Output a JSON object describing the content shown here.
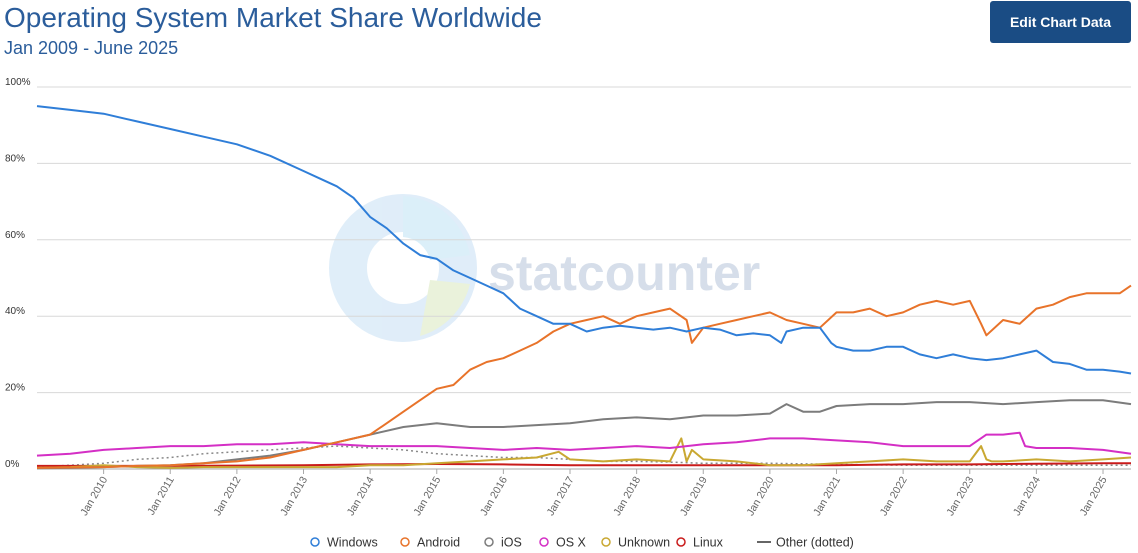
{
  "header": {
    "title": "Operating System Market Share Worldwide",
    "subtitle": "Jan 2009 - June 2025",
    "edit_button_label": "Edit Chart Data"
  },
  "watermark": {
    "text": "statcounter"
  },
  "chart_data": {
    "type": "line",
    "title": "Operating System Market Share Worldwide",
    "subtitle": "Jan 2009 - June 2025",
    "xlabel": "",
    "ylabel": "",
    "x_range": [
      2009.0,
      2025.42
    ],
    "ylim": [
      0,
      100
    ],
    "y_ticks": [
      0,
      20,
      40,
      60,
      80,
      100
    ],
    "y_tick_labels": [
      "0%",
      "20%",
      "40%",
      "60%",
      "80%",
      "100%"
    ],
    "x_ticks": [
      2010,
      2011,
      2012,
      2013,
      2014,
      2015,
      2016,
      2017,
      2018,
      2019,
      2020,
      2021,
      2022,
      2023,
      2024,
      2025
    ],
    "x_tick_labels": [
      "Jan 2010",
      "Jan 2011",
      "Jan 2012",
      "Jan 2013",
      "Jan 2014",
      "Jan 2015",
      "Jan 2016",
      "Jan 2017",
      "Jan 2018",
      "Jan 2019",
      "Jan 2020",
      "Jan 2021",
      "Jan 2022",
      "Jan 2023",
      "Jan 2024",
      "Jan 2025"
    ],
    "grid": true,
    "legend_position": "bottom",
    "series": [
      {
        "name": "Windows",
        "color": "#2f7ed8",
        "dash": "solid",
        "x": [
          2009.0,
          2009.5,
          2010.0,
          2010.5,
          2011.0,
          2011.5,
          2012.0,
          2012.5,
          2013.0,
          2013.25,
          2013.5,
          2013.75,
          2014.0,
          2014.25,
          2014.5,
          2014.75,
          2015.0,
          2015.25,
          2015.5,
          2015.75,
          2016.0,
          2016.25,
          2016.5,
          2016.75,
          2017.0,
          2017.25,
          2017.5,
          2017.75,
          2018.0,
          2018.25,
          2018.5,
          2018.75,
          2019.0,
          2019.25,
          2019.5,
          2019.75,
          2020.0,
          2020.17,
          2020.25,
          2020.5,
          2020.75,
          2020.92,
          2021.0,
          2021.25,
          2021.5,
          2021.75,
          2022.0,
          2022.25,
          2022.5,
          2022.75,
          2023.0,
          2023.25,
          2023.5,
          2023.75,
          2024.0,
          2024.25,
          2024.5,
          2024.75,
          2025.0,
          2025.25,
          2025.42
        ],
        "y": [
          95.0,
          94.0,
          93.0,
          91.0,
          89.0,
          87.0,
          85.0,
          82.0,
          78.0,
          76.0,
          74.0,
          71.0,
          66.0,
          63.0,
          59.0,
          56.0,
          55.0,
          52.0,
          50.0,
          48.0,
          46.0,
          42.0,
          40.0,
          38.0,
          38.0,
          36.0,
          37.0,
          37.5,
          37.0,
          36.5,
          37.0,
          36.0,
          37.0,
          36.5,
          35.0,
          35.5,
          35.0,
          33.0,
          36.0,
          37.0,
          37.0,
          33.0,
          32.0,
          31.0,
          31.0,
          32.0,
          32.0,
          30.0,
          29.0,
          30.0,
          29.0,
          28.5,
          29.0,
          30.0,
          31.0,
          28.0,
          27.5,
          26.0,
          26.0,
          25.5,
          25.0
        ]
      },
      {
        "name": "Android",
        "color": "#e8732a",
        "dash": "solid",
        "x": [
          2009.0,
          2009.5,
          2010.0,
          2010.5,
          2011.0,
          2011.5,
          2012.0,
          2012.5,
          2013.0,
          2013.5,
          2014.0,
          2014.25,
          2014.5,
          2014.75,
          2015.0,
          2015.25,
          2015.5,
          2015.75,
          2016.0,
          2016.25,
          2016.5,
          2016.75,
          2017.0,
          2017.25,
          2017.5,
          2017.75,
          2018.0,
          2018.25,
          2018.5,
          2018.75,
          2018.83,
          2019.0,
          2019.25,
          2019.5,
          2019.75,
          2020.0,
          2020.25,
          2020.5,
          2020.75,
          2021.0,
          2021.25,
          2021.5,
          2021.75,
          2022.0,
          2022.25,
          2022.5,
          2022.75,
          2023.0,
          2023.17,
          2023.25,
          2023.5,
          2023.75,
          2024.0,
          2024.25,
          2024.5,
          2024.75,
          2025.0,
          2025.25,
          2025.42
        ],
        "y": [
          0.3,
          0.4,
          0.5,
          0.8,
          1.0,
          1.5,
          2.0,
          3.0,
          5.0,
          7.0,
          9.0,
          12.0,
          15.0,
          18.0,
          21.0,
          22.0,
          26.0,
          28.0,
          29.0,
          31.0,
          33.0,
          36.0,
          38.0,
          39.0,
          40.0,
          38.0,
          40.0,
          41.0,
          42.0,
          39.0,
          33.0,
          37.0,
          38.0,
          39.0,
          40.0,
          41.0,
          39.0,
          38.0,
          37.0,
          41.0,
          41.0,
          42.0,
          40.0,
          41.0,
          43.0,
          44.0,
          43.0,
          44.0,
          38.0,
          35.0,
          39.0,
          38.0,
          42.0,
          43.0,
          45.0,
          46.0,
          46.0,
          46.0,
          48.0
        ]
      },
      {
        "name": "iOS",
        "color": "#7c7c7c",
        "dash": "solid",
        "x": [
          2009.0,
          2009.5,
          2010.0,
          2010.5,
          2011.0,
          2011.5,
          2012.0,
          2012.5,
          2013.0,
          2013.5,
          2014.0,
          2014.5,
          2015.0,
          2015.5,
          2016.0,
          2016.5,
          2017.0,
          2017.5,
          2018.0,
          2018.5,
          2019.0,
          2019.5,
          2020.0,
          2020.25,
          2020.5,
          2020.75,
          2021.0,
          2021.5,
          2022.0,
          2022.5,
          2023.0,
          2023.5,
          2024.0,
          2024.5,
          2025.0,
          2025.42
        ],
        "y": [
          0.2,
          0.3,
          0.5,
          0.8,
          1.0,
          1.5,
          2.5,
          3.5,
          5.0,
          7.0,
          9.0,
          11.0,
          12.0,
          11.0,
          11.0,
          11.5,
          12.0,
          13.0,
          13.5,
          13.0,
          14.0,
          14.0,
          14.5,
          17.0,
          15.0,
          15.0,
          16.5,
          17.0,
          17.0,
          17.5,
          17.5,
          17.0,
          17.5,
          18.0,
          18.0,
          17.0
        ]
      },
      {
        "name": "OS X",
        "color": "#d42fc5",
        "dash": "solid",
        "x": [
          2009.0,
          2009.5,
          2010.0,
          2010.5,
          2011.0,
          2011.5,
          2012.0,
          2012.5,
          2013.0,
          2013.5,
          2014.0,
          2014.5,
          2015.0,
          2015.5,
          2016.0,
          2016.5,
          2017.0,
          2017.5,
          2018.0,
          2018.5,
          2019.0,
          2019.5,
          2020.0,
          2020.5,
          2021.0,
          2021.5,
          2022.0,
          2022.5,
          2023.0,
          2023.25,
          2023.5,
          2023.75,
          2023.83,
          2024.0,
          2024.5,
          2025.0,
          2025.42
        ],
        "y": [
          3.5,
          4.0,
          5.0,
          5.5,
          6.0,
          6.0,
          6.5,
          6.5,
          7.0,
          6.5,
          6.0,
          6.0,
          6.0,
          5.5,
          5.0,
          5.5,
          5.0,
          5.5,
          6.0,
          5.5,
          6.5,
          7.0,
          8.0,
          8.0,
          7.5,
          7.0,
          6.0,
          6.0,
          6.0,
          9.0,
          9.0,
          9.5,
          6.0,
          5.5,
          5.5,
          5.0,
          4.0
        ]
      },
      {
        "name": "Unknown",
        "color": "#c9a832",
        "dash": "solid",
        "x": [
          2009.0,
          2009.5,
          2010.0,
          2010.5,
          2011.0,
          2011.5,
          2012.0,
          2012.5,
          2013.0,
          2013.5,
          2014.0,
          2014.5,
          2015.0,
          2015.5,
          2016.0,
          2016.5,
          2016.83,
          2017.0,
          2017.5,
          2018.0,
          2018.5,
          2018.67,
          2018.75,
          2018.83,
          2019.0,
          2019.5,
          2020.0,
          2020.5,
          2021.0,
          2021.5,
          2022.0,
          2022.5,
          2023.0,
          2023.17,
          2023.25,
          2023.33,
          2023.5,
          2024.0,
          2024.5,
          2025.0,
          2025.42
        ],
        "y": [
          0.3,
          0.5,
          1.0,
          0.5,
          0.3,
          0.5,
          0.5,
          0.5,
          0.5,
          0.5,
          1.0,
          1.0,
          1.5,
          2.0,
          2.5,
          3.0,
          4.5,
          2.5,
          2.0,
          2.5,
          2.0,
          8.0,
          2.0,
          5.0,
          2.5,
          2.0,
          1.0,
          1.0,
          1.5,
          2.0,
          2.5,
          2.0,
          2.0,
          6.0,
          2.5,
          2.0,
          2.0,
          2.5,
          2.0,
          2.5,
          3.0
        ]
      },
      {
        "name": "Linux",
        "color": "#c91b1b",
        "dash": "solid",
        "x": [
          2009.0,
          2010.0,
          2011.0,
          2012.0,
          2013.0,
          2014.0,
          2015.0,
          2016.0,
          2017.0,
          2018.0,
          2019.0,
          2020.0,
          2021.0,
          2022.0,
          2023.0,
          2024.0,
          2025.0,
          2025.42
        ],
        "y": [
          0.8,
          0.8,
          0.8,
          0.9,
          1.0,
          1.2,
          1.3,
          1.2,
          1.0,
          1.0,
          1.0,
          1.0,
          1.0,
          1.2,
          1.2,
          1.4,
          1.5,
          1.5
        ]
      },
      {
        "name": "Other (dotted)",
        "color": "#888888",
        "dash": "dotted",
        "x": [
          2009.0,
          2009.5,
          2010.0,
          2010.5,
          2011.0,
          2011.5,
          2012.0,
          2012.5,
          2013.0,
          2013.5,
          2014.0,
          2014.5,
          2015.0,
          2015.5,
          2016.0,
          2016.5,
          2017.0,
          2017.5,
          2018.0,
          2018.5,
          2019.0,
          2019.5,
          2020.0,
          2021.0,
          2022.0,
          2023.0,
          2024.0,
          2025.0,
          2025.42
        ],
        "y": [
          0.5,
          1.0,
          1.5,
          2.5,
          3.0,
          4.0,
          4.5,
          5.0,
          5.5,
          6.0,
          5.5,
          5.0,
          4.0,
          3.5,
          3.0,
          3.0,
          2.5,
          2.0,
          2.0,
          1.8,
          1.5,
          1.5,
          1.5,
          1.2,
          1.0,
          1.0,
          1.0,
          1.0,
          1.0
        ]
      }
    ]
  }
}
